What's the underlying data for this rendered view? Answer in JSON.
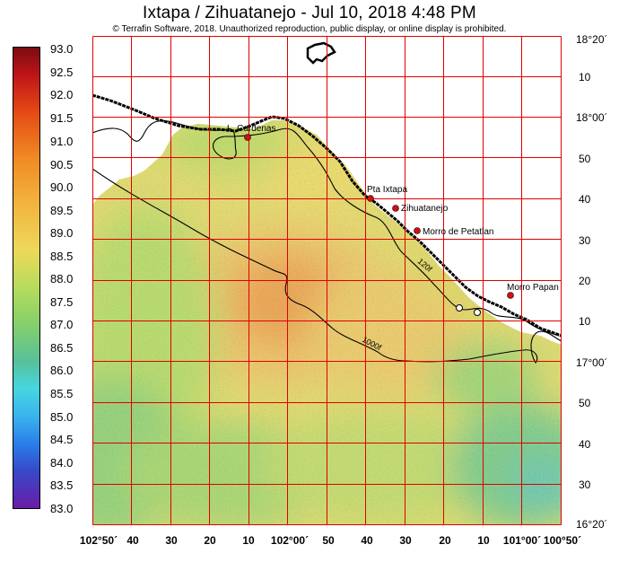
{
  "header": {
    "title": "Ixtapa / Zihuatanejo - Jul 10, 2018 4:48 PM",
    "copyright": "© Terrafin Software, 2018. Unauthorized reproduction, public display, or online display is prohibited."
  },
  "colorbar": {
    "labels": [
      "93.0",
      "92.5",
      "92.0",
      "91.5",
      "91.0",
      "90.5",
      "90.0",
      "89.5",
      "89.0",
      "88.5",
      "88.0",
      "87.5",
      "87.0",
      "86.5",
      "86.0",
      "85.5",
      "85.0",
      "84.5",
      "84.0",
      "83.5",
      "83.0"
    ]
  },
  "map": {
    "lat_labels": [
      "18°20´",
      "10",
      "18°00´",
      "50",
      "40",
      "30",
      "20",
      "10",
      "17°00´",
      "50",
      "40",
      "30",
      "16°20´"
    ],
    "lon_labels": [
      "102°50´",
      "40",
      "30",
      "20",
      "10",
      "102°00´",
      "50",
      "40",
      "30",
      "20",
      "10",
      "101°00´",
      "100°50´"
    ],
    "places": [
      "L. Cardenas",
      "Pta Ixtapa",
      "Zihuatanejo",
      "Morro de Petatlan",
      "Morro Papan"
    ],
    "contours": [
      "120f",
      "1000f"
    ],
    "colors": {
      "grid": "#e00000",
      "marker": "#d01010",
      "land": "#ffffff"
    }
  }
}
